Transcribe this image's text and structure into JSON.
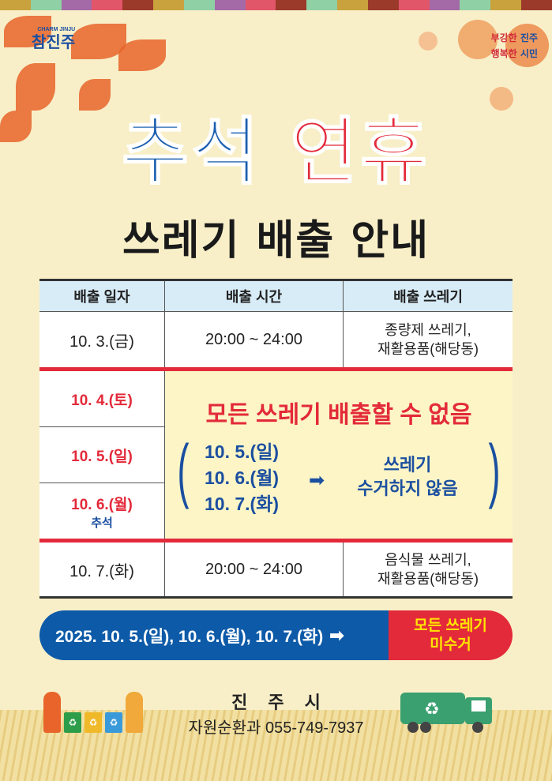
{
  "header": {
    "logo_text": "참진주",
    "logo_sub": "CHARM JINJU",
    "slogan_line1_a": "부강한",
    "slogan_line1_b": "진주",
    "slogan_line2_a": "행복한",
    "slogan_line2_b": "시민"
  },
  "title": {
    "part1": "추석",
    "part2": "연휴",
    "subtitle": "쓰레기 배출 안내"
  },
  "colors": {
    "blue": "#1b5fb0",
    "red": "#e32a3a",
    "yellow": "#ffe600",
    "header_bg": "#d8ecf7",
    "notice_bg": "#fdf5c6",
    "background": "#f8efc8"
  },
  "table": {
    "headers": [
      "배출 일자",
      "배출 시간",
      "배출 쓰레기"
    ],
    "row1": {
      "date": "10. 3.(금)",
      "time": "20:00 ~ 24:00",
      "waste_line1": "종량제 쓰레기,",
      "waste_line2": "재활용품(해당동)"
    },
    "blocked_dates": [
      "10. 4.(토)",
      "10. 5.(일)",
      "10. 6.(월)"
    ],
    "holiday_label": "추석",
    "notice": {
      "headline": "모든 쓰레기 배출할 수 없음",
      "dates": [
        "10. 5.(일)",
        "10. 6.(월)",
        "10. 7.(화)"
      ],
      "result_line1": "쓰레기",
      "result_line2": "수거하지 않음"
    },
    "row4": {
      "date": "10. 7.(화)",
      "time": "20:00 ~ 24:00",
      "waste_line1": "음식물 쓰레기,",
      "waste_line2": "재활용품(해당동)"
    }
  },
  "banner": {
    "dates": "2025. 10. 5.(일), 10. 6.(월), 10. 7.(화)",
    "result_line1": "모든 쓰레기",
    "result_line2": "미수거"
  },
  "footer": {
    "city": "진주시",
    "department": "자원순환과 055-749-7937"
  }
}
